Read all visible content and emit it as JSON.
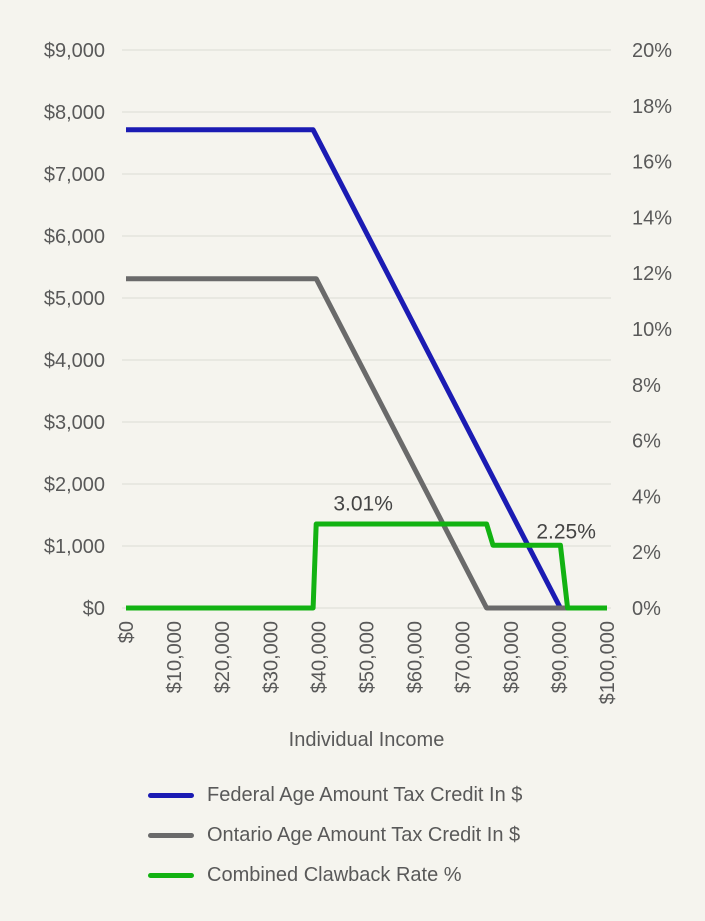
{
  "page": {
    "background_color": "#F5F4EE",
    "gridline_color": "#E1E0D9",
    "axis_text_color": "#595959",
    "annotation_text_color": "#444444"
  },
  "chart_data": {
    "type": "line",
    "title": "",
    "xlabel": "Individual Income",
    "x_axis": {
      "range": [
        0,
        100000
      ],
      "tick_step": 10000,
      "tick_labels": [
        "$0",
        "$10,000",
        "$20,000",
        "$30,000",
        "$40,000",
        "$50,000",
        "$60,000",
        "$70,000",
        "$80,000",
        "$90,000",
        "$100,000"
      ],
      "tick_label_rotation": -90
    },
    "left_axis": {
      "range": [
        0,
        9000
      ],
      "tick_step": 1000,
      "tick_labels": [
        "$0",
        "$1,000",
        "$2,000",
        "$3,000",
        "$4,000",
        "$5,000",
        "$6,000",
        "$7,000",
        "$8,000",
        "$9,000"
      ],
      "gridlines": true
    },
    "right_axis": {
      "range": [
        0,
        20
      ],
      "tick_step": 2,
      "tick_labels": [
        "0%",
        "2%",
        "4%",
        "6%",
        "8%",
        "10%",
        "12%",
        "14%",
        "16%",
        "18%",
        "20%"
      ],
      "gridlines": false
    },
    "series": [
      {
        "name": "Federal Age Amount Tax Credit In $",
        "axis": "left",
        "color": "#1B1BB3",
        "points": [
          [
            0,
            7713
          ],
          [
            38893,
            7713
          ],
          [
            90313,
            0
          ],
          [
            100000,
            0
          ]
        ]
      },
      {
        "name": "Ontario Age Amount Tax Credit In $",
        "axis": "left",
        "color": "#6A6A6A",
        "points": [
          [
            0,
            5312
          ],
          [
            39546,
            5312
          ],
          [
            74959,
            0
          ],
          [
            100000,
            0
          ]
        ]
      },
      {
        "name": "Combined Clawback Rate %",
        "axis": "right",
        "color": "#12B212",
        "points": [
          [
            0,
            0
          ],
          [
            38893,
            0
          ],
          [
            39546,
            3.01
          ],
          [
            74959,
            3.01
          ],
          [
            76300,
            2.25
          ],
          [
            90313,
            2.25
          ],
          [
            91800,
            0
          ],
          [
            100000,
            0
          ]
        ]
      }
    ],
    "annotations": [
      {
        "text": "3.01%",
        "x": 49300,
        "y": 3.5,
        "axis": "right"
      },
      {
        "text": "2.25%",
        "x": 91500,
        "y": 2.5,
        "axis": "right"
      }
    ],
    "legend_position": "bottom"
  }
}
